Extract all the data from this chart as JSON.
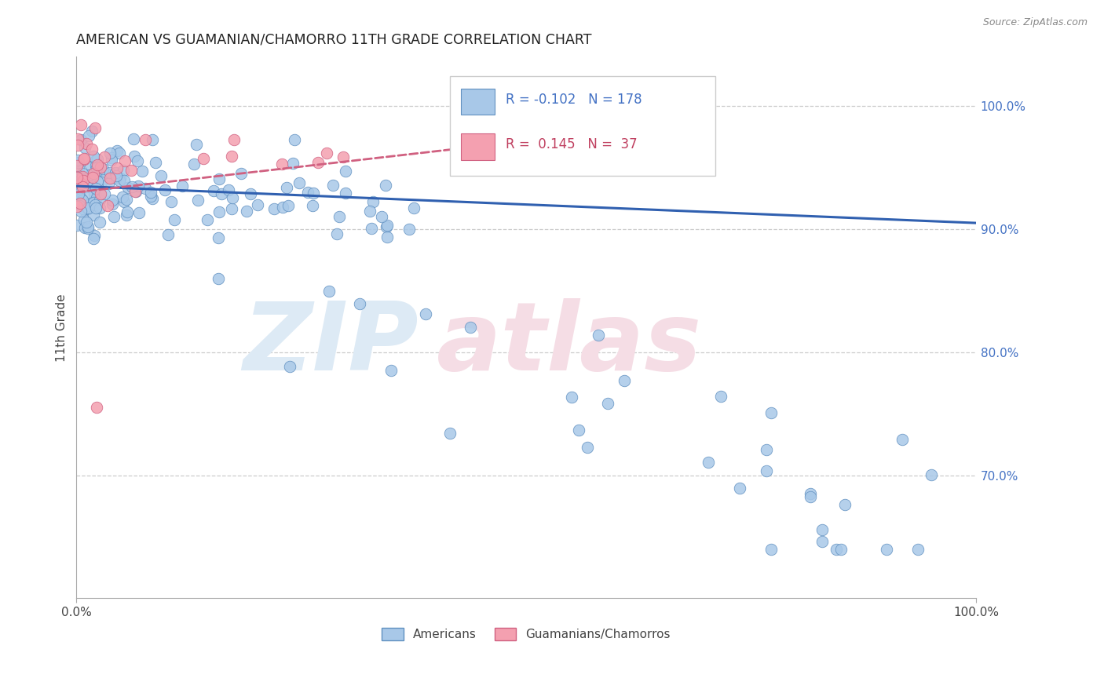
{
  "title": "AMERICAN VS GUAMANIAN/CHAMORRO 11TH GRADE CORRELATION CHART",
  "source": "Source: ZipAtlas.com",
  "ylabel": "11th Grade",
  "ytick_labels": [
    "100.0%",
    "90.0%",
    "80.0%",
    "70.0%"
  ],
  "ytick_values": [
    1.0,
    0.9,
    0.8,
    0.7
  ],
  "xlim": [
    0.0,
    1.0
  ],
  "ylim": [
    0.6,
    1.04
  ],
  "legend_r_blue": "-0.102",
  "legend_n_blue": "178",
  "legend_r_pink": "0.145",
  "legend_n_pink": "37",
  "blue_color": "#a8c8e8",
  "pink_color": "#f4a0b0",
  "blue_edge_color": "#6090c0",
  "pink_edge_color": "#d06080",
  "blue_line_color": "#3060b0",
  "pink_line_color": "#d06080",
  "tick_color": "#4472c4",
  "title_color": "#222222",
  "source_color": "#888888",
  "grid_color": "#cccccc",
  "spine_color": "#aaaaaa",
  "watermark_zip_color": "#ddeaf5",
  "watermark_atlas_color": "#f5dde5",
  "legend_box_color": "#cccccc",
  "legend_blue_text_color": "#4472c4",
  "legend_pink_text_color": "#c04060"
}
